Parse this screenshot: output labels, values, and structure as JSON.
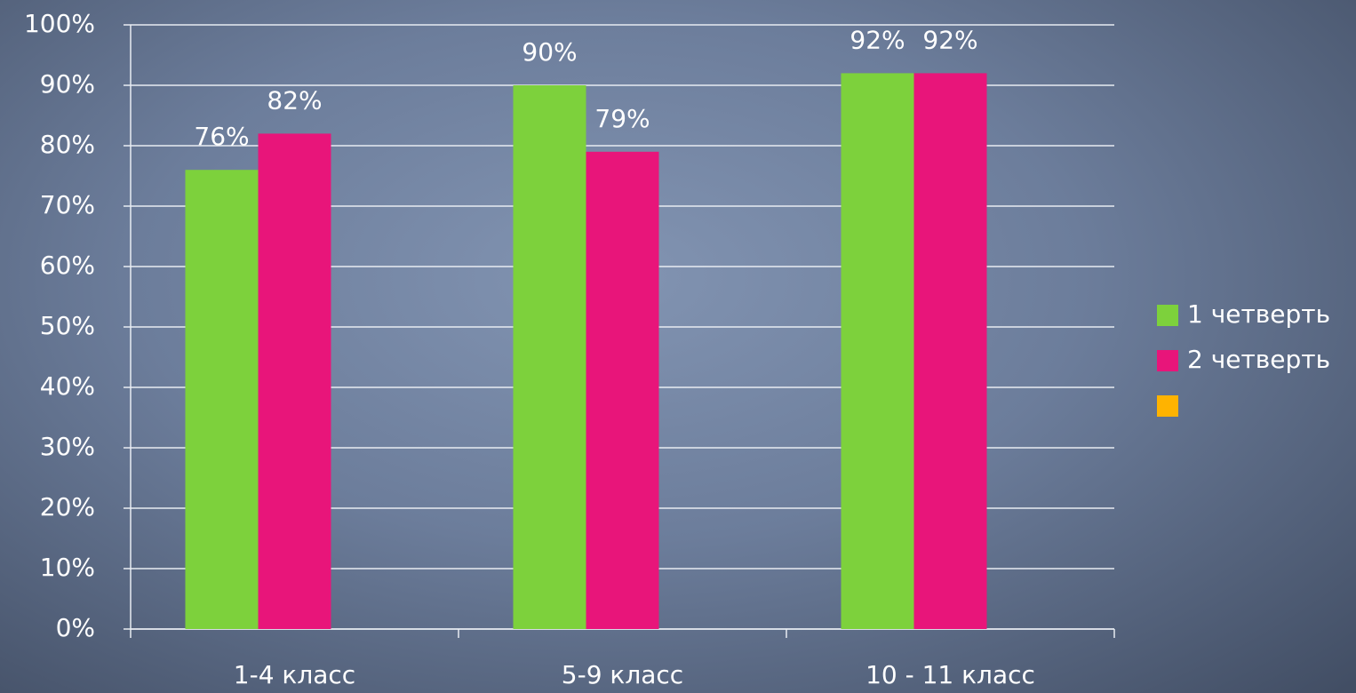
{
  "chart_data": {
    "type": "bar",
    "categories": [
      "1-4 класс",
      "5-9 класс",
      "10 - 11 класс"
    ],
    "series": [
      {
        "name": "1 четверть",
        "color": "#7dd13c",
        "values": [
          76,
          90,
          92
        ],
        "value_labels": [
          "76%",
          "90%",
          "92%"
        ]
      },
      {
        "name": "2 четверть",
        "color": "#e8157a",
        "values": [
          82,
          79,
          92
        ],
        "value_labels": [
          "82%",
          "79%",
          "92%"
        ]
      },
      {
        "name": null,
        "color": "#ffb300",
        "values": [
          null,
          null,
          null
        ]
      }
    ],
    "ylim": [
      0,
      100
    ],
    "yticks": [
      {
        "value": 0,
        "label": "0%"
      },
      {
        "value": 10,
        "label": "10%"
      },
      {
        "value": 20,
        "label": "20%"
      },
      {
        "value": 30,
        "label": "30%"
      },
      {
        "value": 40,
        "label": "40%"
      },
      {
        "value": 50,
        "label": "50%"
      },
      {
        "value": 60,
        "label": "60%"
      },
      {
        "value": 70,
        "label": "70%"
      },
      {
        "value": 80,
        "label": "80%"
      },
      {
        "value": 90,
        "label": "90%"
      },
      {
        "value": 100,
        "label": "100%"
      }
    ],
    "grid": true,
    "legend": "right"
  }
}
